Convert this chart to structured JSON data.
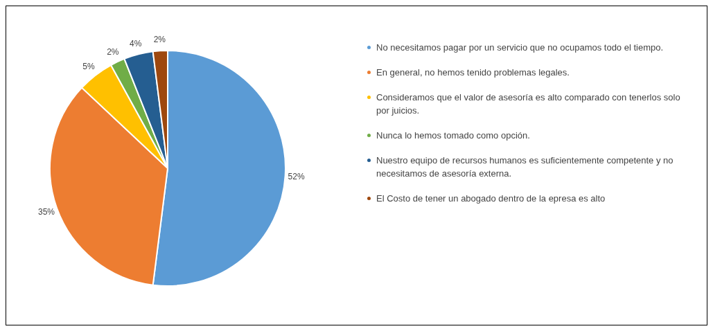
{
  "chart_data": {
    "type": "pie",
    "categories": [
      "No necesitamos pagar por un servicio que no ocupamos todo el tiempo.",
      "En general, no hemos tenido problemas legales.",
      "Consideramos que el valor de asesoría es alto comparado con tenerlos solo por juicios.",
      "Nunca lo hemos tomado como opción.",
      "Nuestro equipo de recursos humanos es suficientemente competente y no necesitamos de asesoría externa.",
      "El Costo de tener un abogado dentro de la epresa es alto"
    ],
    "values": [
      52,
      35,
      5,
      2,
      4,
      2
    ],
    "value_labels": [
      "52%",
      "35%",
      "5%",
      "2%",
      "4%",
      "2%"
    ],
    "colors": [
      "#5b9bd5",
      "#ed7d31",
      "#ffc000",
      "#70ad47",
      "#255e91",
      "#9e480e"
    ],
    "legend": "right"
  }
}
